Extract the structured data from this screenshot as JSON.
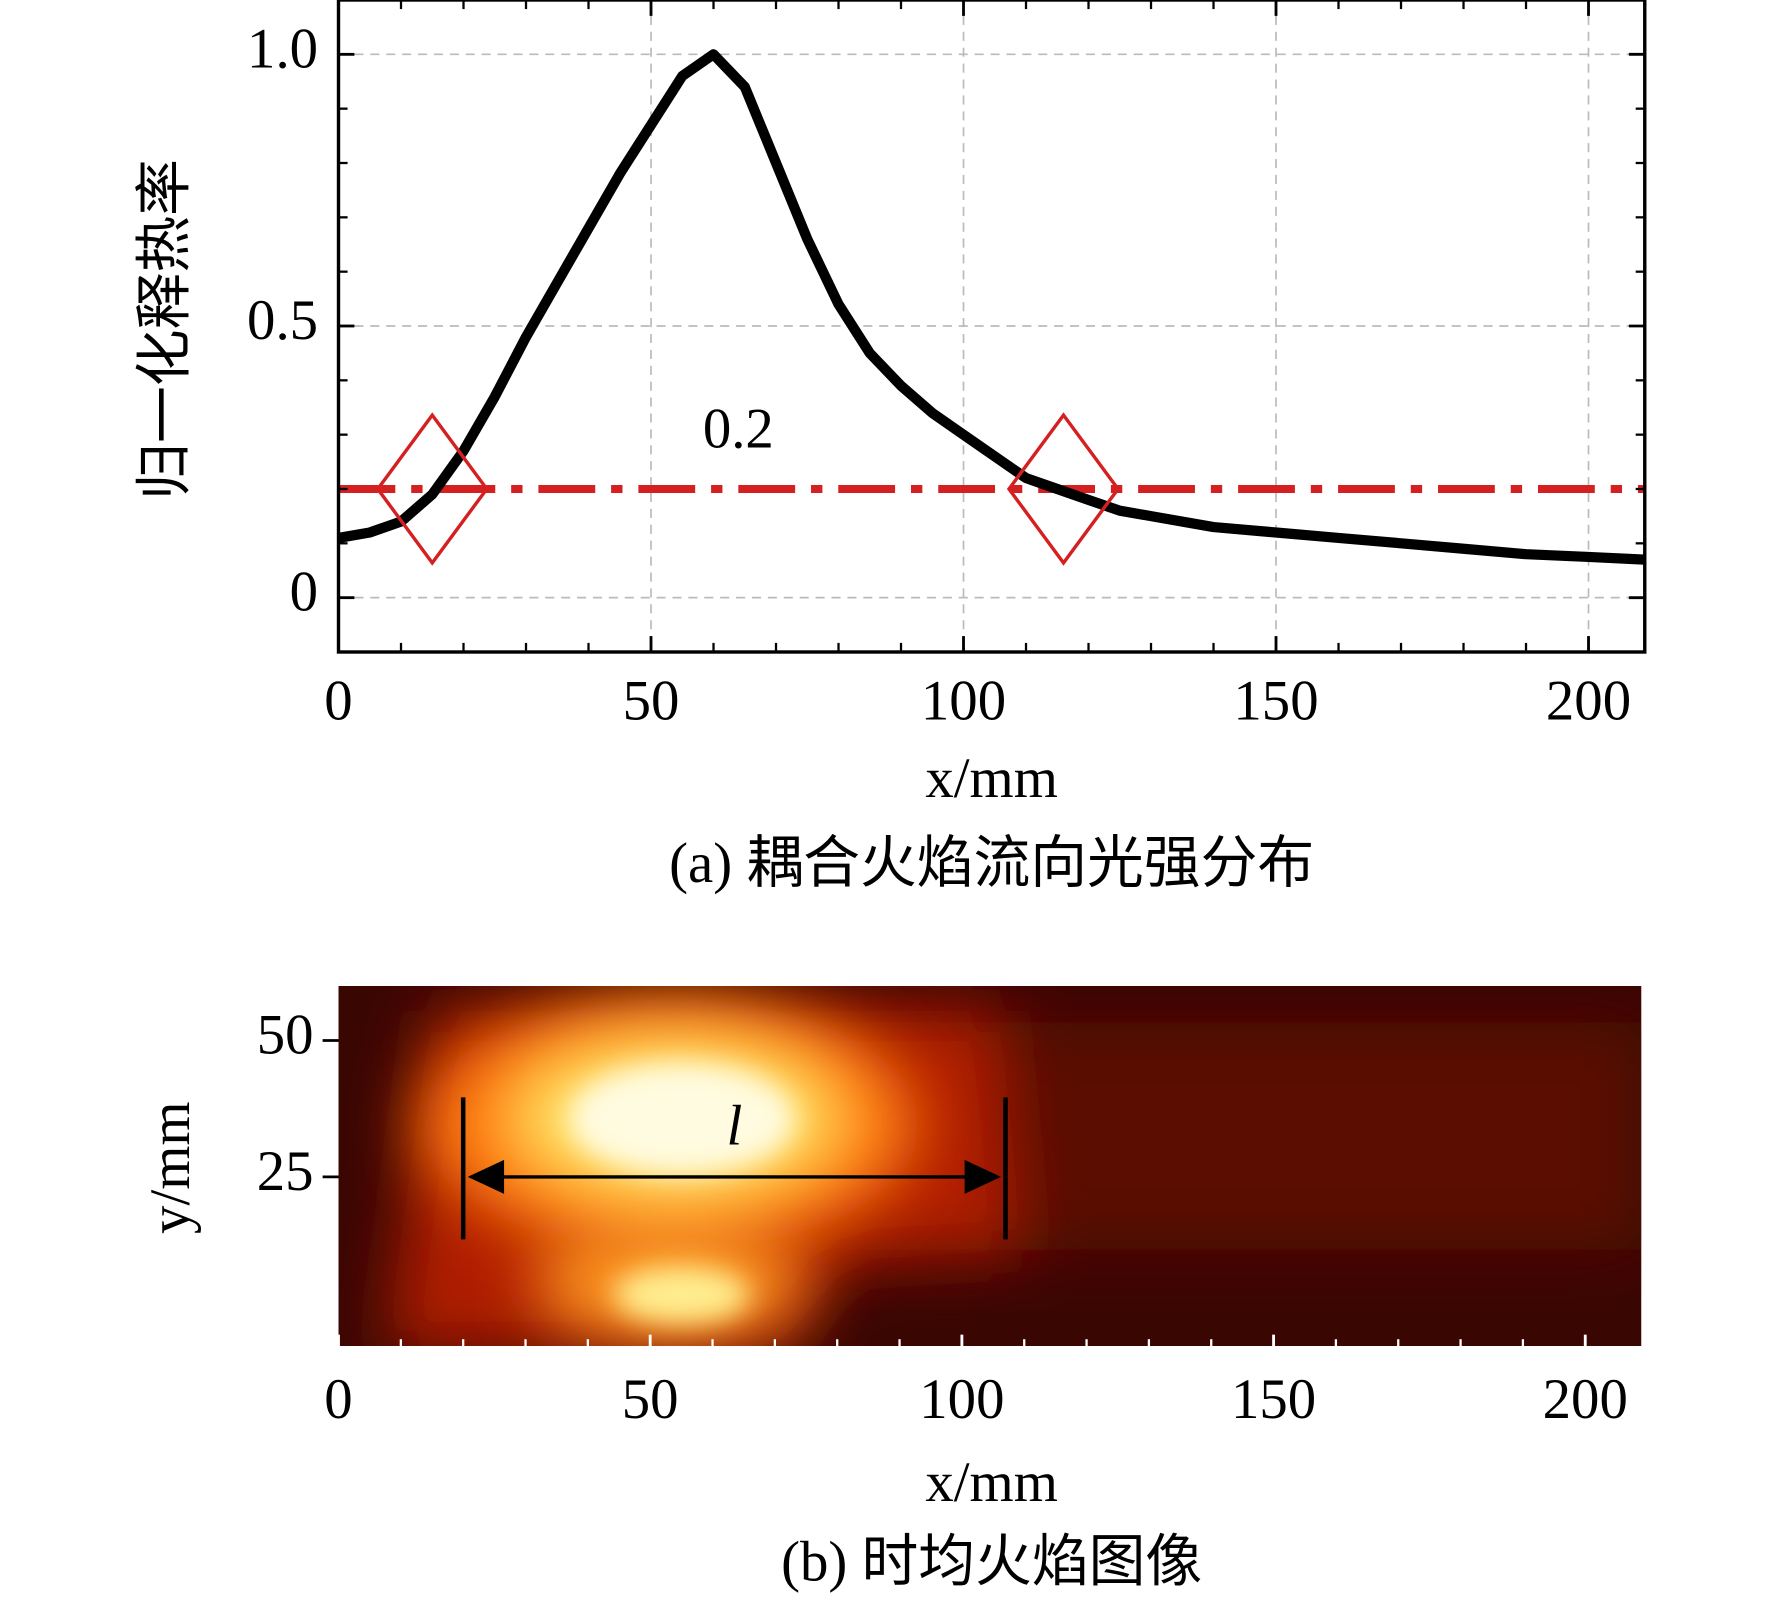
{
  "chart_data": [
    {
      "type": "line",
      "ylabel": "归一化释热率",
      "xlabel": "x/mm",
      "caption": "(a) 耦合火焰流向光强分布",
      "x": [
        0,
        5,
        10,
        15,
        20,
        25,
        30,
        35,
        40,
        45,
        50,
        55,
        60,
        65,
        70,
        75,
        80,
        85,
        90,
        95,
        100,
        105,
        110,
        115,
        120,
        125,
        130,
        140,
        150,
        160,
        170,
        180,
        190,
        200,
        209
      ],
      "values": [
        0.11,
        0.12,
        0.14,
        0.19,
        0.27,
        0.37,
        0.48,
        0.58,
        0.68,
        0.78,
        0.87,
        0.96,
        1.0,
        0.94,
        0.8,
        0.66,
        0.54,
        0.45,
        0.39,
        0.34,
        0.3,
        0.26,
        0.22,
        0.2,
        0.18,
        0.16,
        0.15,
        0.13,
        0.12,
        0.11,
        0.1,
        0.09,
        0.08,
        0.075,
        0.07
      ],
      "color": "#000000",
      "threshold": 0.2,
      "threshold_color": "#d42020",
      "intersections_x": [
        15,
        116
      ],
      "xlim": [
        0,
        209
      ],
      "ylim": [
        -0.1,
        1.1
      ],
      "xticks": [
        0,
        50,
        100,
        150,
        200
      ],
      "yticks": [
        0,
        0.5,
        {
          "value": 1,
          "label": "1.0"
        }
      ],
      "xminorticks": [
        10,
        20,
        30,
        40,
        60,
        70,
        80,
        90,
        110,
        120,
        130,
        140,
        160,
        170,
        180,
        190
      ],
      "yminorticks": [
        -0.1,
        0.1,
        0.2,
        0.3,
        0.4,
        0.6,
        0.7,
        0.8,
        0.9,
        1.1
      ],
      "grid": true
    },
    {
      "type": "image",
      "ylabel": "y/mm",
      "xlabel": "x/mm",
      "caption": "(b) 时均火焰图像",
      "xlim": [
        0,
        209
      ],
      "ylim": [
        -6,
        60
      ],
      "xticks": [
        0,
        50,
        100,
        150,
        200
      ],
      "yticks": [
        25,
        50
      ],
      "xminorticks": [
        10,
        20,
        30,
        40,
        60,
        70,
        80,
        90,
        110,
        120,
        130,
        140,
        160,
        170,
        180,
        190
      ],
      "length_marker": {
        "label": "l",
        "x": [
          20,
          107
        ],
        "y": 25
      }
    }
  ]
}
